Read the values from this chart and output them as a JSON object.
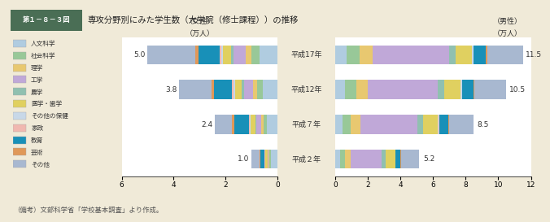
{
  "title_box_text": "第１－８－３図",
  "title_main": "専攻分野別にみた学生数（大学院（修士課程））の推移",
  "bg_color": "#f0ead8",
  "plot_bg": "#ffffff",
  "header_bg": "#4a6e55",
  "years": [
    "平成２年",
    "平成７年",
    "平成12年",
    "平成17年"
  ],
  "female_totals": [
    1.0,
    2.4,
    3.8,
    5.0
  ],
  "male_totals": [
    5.2,
    8.5,
    10.5,
    11.5
  ],
  "categories": [
    "人文科学",
    "社会科学",
    "理学",
    "工学",
    "農学",
    "医学・歯学",
    "その他の保健",
    "家政",
    "教育",
    "芸術",
    "その他"
  ],
  "colors": [
    "#b0cce0",
    "#98c898",
    "#e8c870",
    "#c0a8d8",
    "#90c0b0",
    "#e0d060",
    "#c8d8e8",
    "#f0b8b0",
    "#1890b8",
    "#e09858",
    "#a8b8d0"
  ],
  "female_data": [
    [
      0.25,
      0.05,
      0.05,
      0.02,
      0.02,
      0.08,
      0.01,
      0.03,
      0.15,
      0.04,
      0.3
    ],
    [
      0.4,
      0.12,
      0.1,
      0.18,
      0.05,
      0.18,
      0.03,
      0.05,
      0.55,
      0.08,
      0.66
    ],
    [
      0.55,
      0.22,
      0.18,
      0.35,
      0.08,
      0.25,
      0.05,
      0.06,
      0.7,
      0.1,
      1.26
    ],
    [
      0.68,
      0.32,
      0.22,
      0.48,
      0.1,
      0.3,
      0.07,
      0.06,
      0.8,
      0.12,
      1.85
    ]
  ],
  "male_data": [
    [
      0.3,
      0.3,
      0.35,
      1.9,
      0.22,
      0.6,
      0.02,
      0.01,
      0.3,
      0.04,
      1.11
    ],
    [
      0.45,
      0.5,
      0.6,
      3.5,
      0.35,
      0.9,
      0.05,
      0.01,
      0.55,
      0.06,
      1.53
    ],
    [
      0.6,
      0.68,
      0.72,
      4.3,
      0.4,
      1.0,
      0.08,
      0.01,
      0.68,
      0.08,
      1.93
    ],
    [
      0.7,
      0.78,
      0.78,
      4.7,
      0.42,
      1.0,
      0.1,
      0.01,
      0.75,
      0.1,
      2.16
    ]
  ],
  "footnote": "（備考）文部科学省「学校基本調査」より作成。",
  "female_label": "（女性）",
  "male_label": "（男性）",
  "unit_label": "（万人）"
}
